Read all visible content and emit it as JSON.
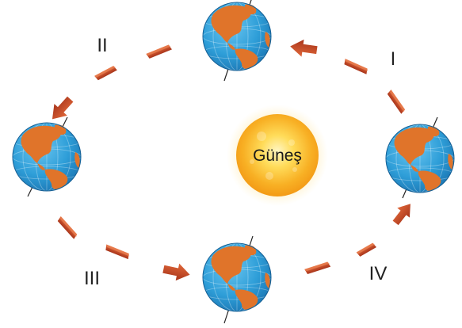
{
  "diagram": {
    "sun": {
      "label": "Güneş"
    },
    "positions": [
      {
        "label": "I"
      },
      {
        "label": "II"
      },
      {
        "label": "III"
      },
      {
        "label": "IV"
      }
    ]
  },
  "colors": {
    "ocean": "#2e9ed8",
    "land": "#e0742a",
    "sun_core": "#ffd24a",
    "sun_edge": "#f7a21b",
    "arrow": "#c4431f"
  }
}
